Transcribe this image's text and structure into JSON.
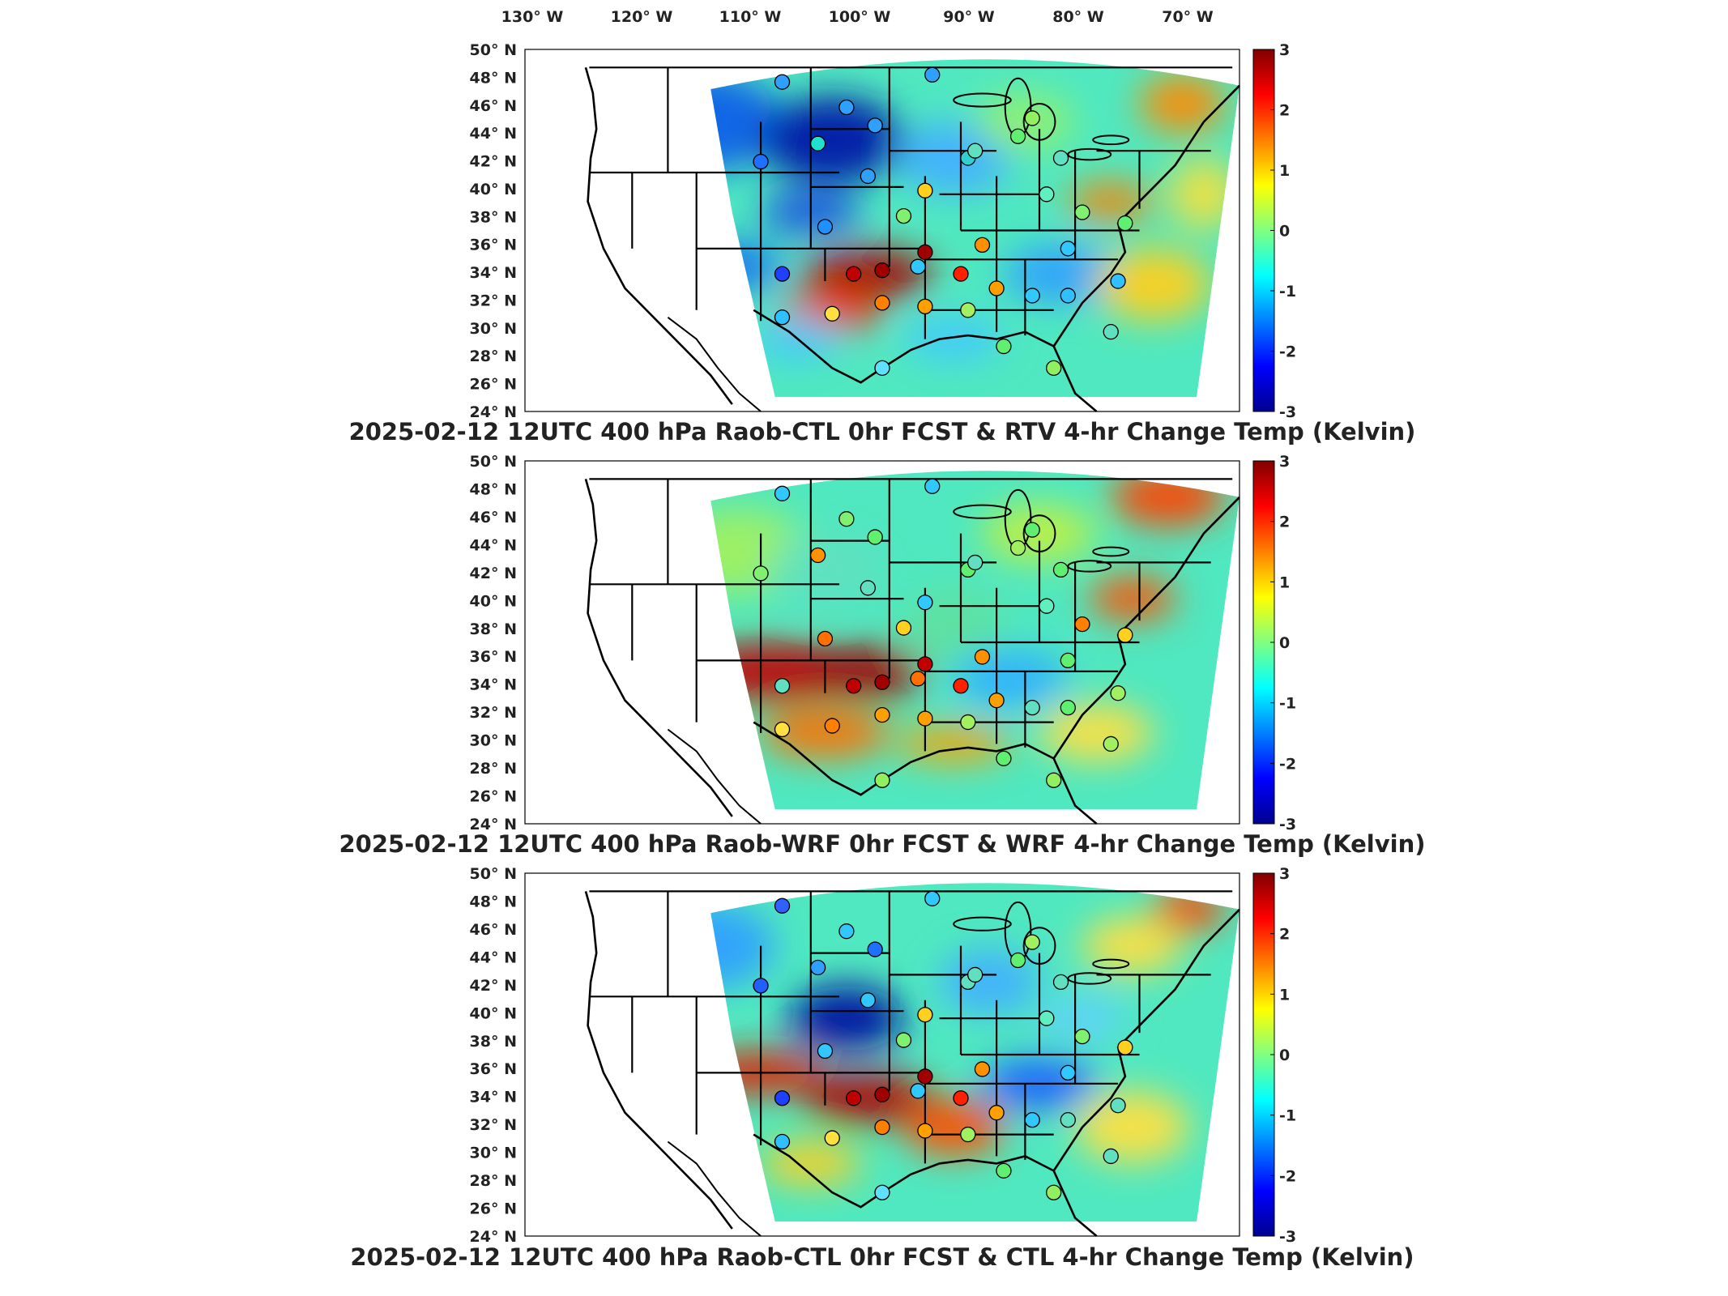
{
  "top_lon_labels": [
    "130° W",
    "120° W",
    "110° W",
    "100° W",
    "90° W",
    "80° W",
    "70° W"
  ],
  "lat_labels": [
    "50° N",
    "48° N",
    "46° N",
    "44° N",
    "42° N",
    "40° N",
    "38° N",
    "36° N",
    "34° N",
    "32° N",
    "30° N",
    "28° N",
    "26° N",
    "24° N"
  ],
  "colorbar_ticks": [
    "3",
    "2",
    "1",
    "0",
    "-1",
    "-2",
    "-3"
  ],
  "panels": [
    {
      "title": "2025-02-12 12UTC 400 hPa Raob-CTL 0hr FCST & RTV 4-hr Change Temp (Kelvin)"
    },
    {
      "title": "2025-02-12 12UTC 400 hPa Raob-WRF 0hr FCST & WRF 4-hr Change Temp (Kelvin)"
    },
    {
      "title": "2025-02-12 12UTC 400 hPa Raob-CTL 0hr FCST & CTL 4-hr Change Temp (Kelvin)"
    }
  ],
  "colors": {
    "colormap": "jet",
    "state_lines": "#000000",
    "frame": "#000000"
  }
}
